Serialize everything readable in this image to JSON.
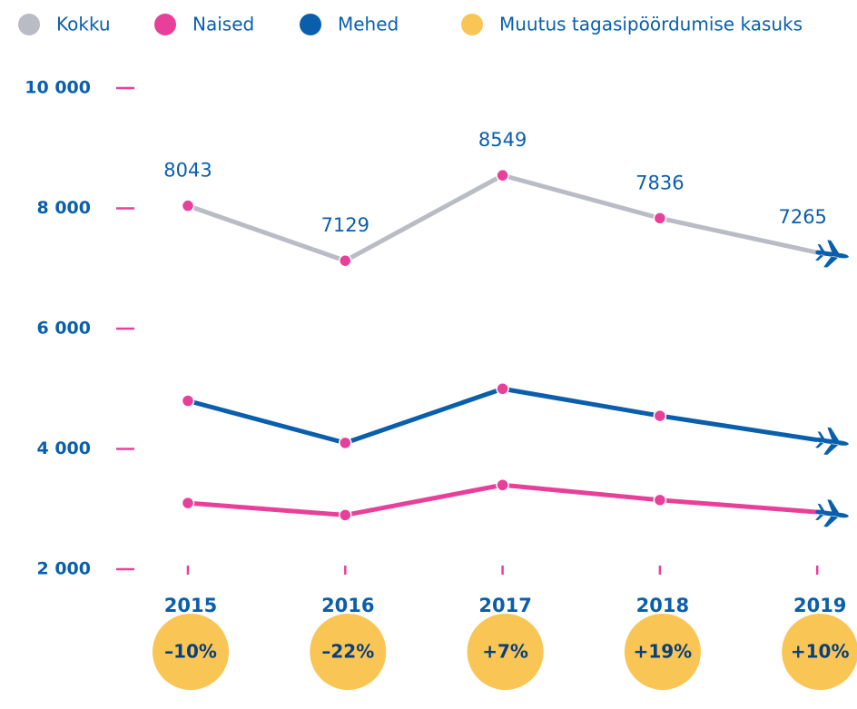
{
  "chart_data": {
    "type": "line",
    "categories": [
      "2015",
      "2016",
      "2017",
      "2018",
      "2019"
    ],
    "series": [
      {
        "name": "Kokku",
        "color": "#b9bcc4",
        "values": [
          8043,
          7129,
          8549,
          7836,
          7265
        ]
      },
      {
        "name": "Naised",
        "color": "#e8409a",
        "values": [
          3100,
          2900,
          3400,
          3150,
          2950
        ]
      },
      {
        "name": "Mehed",
        "color": "#0a5fad",
        "values": [
          4800,
          4100,
          5000,
          4550,
          4150
        ]
      }
    ],
    "change": {
      "name": "Muutus tagasipöördumise kasuks",
      "color": "#f9c555",
      "values": [
        -10,
        -22,
        7,
        19,
        10
      ],
      "value_labels": [
        "–10%",
        "–22%",
        "+7%",
        "+19%",
        "+10%"
      ]
    },
    "ylim": [
      2000,
      10000
    ],
    "yticks": [
      {
        "value": 2000,
        "label": "2 000"
      },
      {
        "value": 4000,
        "label": "4 000"
      },
      {
        "value": 6000,
        "label": "6 000"
      },
      {
        "value": 8000,
        "label": "8 000"
      },
      {
        "value": 10000,
        "label": "10 000"
      }
    ]
  }
}
